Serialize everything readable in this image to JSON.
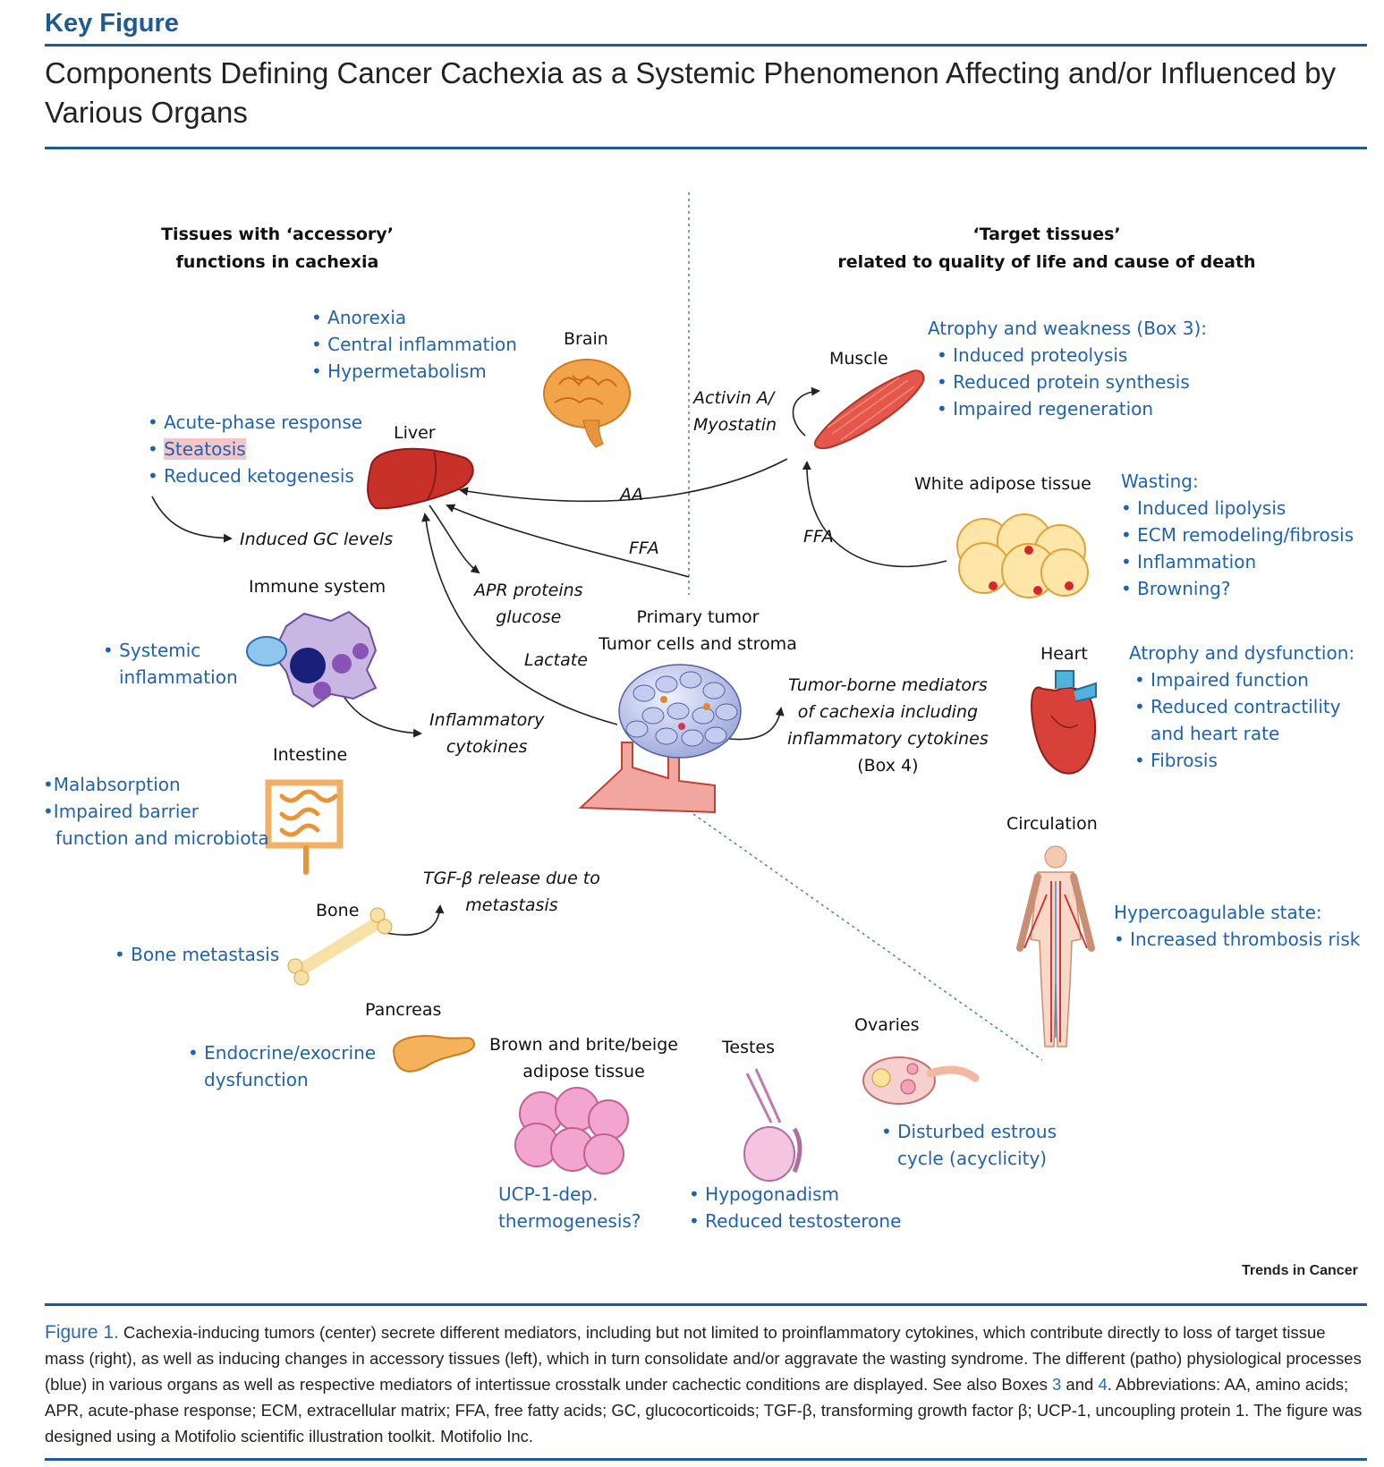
{
  "header": {
    "label": "Key Figure",
    "title": "Components Defining Cancer Cachexia as a Systemic Phenomenon Affecting and/or Influenced by Various Organs"
  },
  "columns": {
    "left_header": [
      "Tissues with ‘accessory’",
      "functions in cachexia"
    ],
    "right_header": [
      "‘Target tissues’",
      "related to quality of life and cause of death"
    ]
  },
  "organs": {
    "brain": "Brain",
    "liver": "Liver",
    "muscle": "Muscle",
    "wat": "White adipose tissue",
    "immune": "Immune system",
    "tumor": [
      "Primary tumor",
      "Tumor cells and stroma"
    ],
    "heart": "Heart",
    "intestine": "Intestine",
    "circulation": "Circulation",
    "bone": "Bone",
    "pancreas": "Pancreas",
    "bat": [
      "Brown and brite/beige",
      "adipose tissue"
    ],
    "testes": "Testes",
    "ovaries": "Ovaries"
  },
  "mediators": {
    "activin": [
      "Activin A/",
      "Myostatin"
    ],
    "aa": "AA",
    "ffa_left": "FFA",
    "ffa_right": "FFA",
    "gc": "Induced GC levels",
    "apr": [
      "APR proteins",
      "glucose"
    ],
    "lactate": "Lactate",
    "tumor_mediators": [
      "Tumor-borne mediators",
      "of cachexia including",
      "inflammatory cytokines"
    ],
    "box4": "(Box 4)",
    "cytokines": [
      "Inflammatory",
      "cytokines"
    ],
    "tgf": [
      "TGF-β release due to",
      "metastasis"
    ]
  },
  "effects": {
    "brain": [
      "Anorexia",
      "Central inflammation",
      "Hypermetabolism"
    ],
    "liver": [
      "Acute-phase response",
      "Steatosis",
      "Reduced ketogenesis"
    ],
    "muscle_title": "Atrophy and weakness (Box 3):",
    "muscle": [
      "Induced proteolysis",
      "Reduced protein synthesis",
      "Impaired regeneration"
    ],
    "wat_title": "Wasting:",
    "wat": [
      "Induced lipolysis",
      "ECM remodeling/fibrosis",
      "Inflammation",
      "Browning?"
    ],
    "immune": [
      "Systemic",
      "inflammation"
    ],
    "heart_title": "Atrophy and dysfunction:",
    "heart": [
      "Impaired function",
      "Reduced contractility",
      "and heart rate",
      "Fibrosis"
    ],
    "intestine": [
      "Malabsorption",
      "Impaired barrier",
      "function and microbiota"
    ],
    "circulation_title": "Hypercoagulable state:",
    "circulation": [
      "Increased thrombosis risk"
    ],
    "bone": [
      "Bone metastasis"
    ],
    "pancreas": [
      "Endocrine/exocrine",
      "dysfunction"
    ],
    "bat": [
      "UCP-1-dep.",
      "thermogenesis?"
    ],
    "testes": [
      "Hypogonadism",
      "Reduced testosterone"
    ],
    "ovaries": [
      "Disturbed estrous",
      "cycle (acyclicity)"
    ]
  },
  "credit": "Trends in Cancer",
  "caption": {
    "label": "Figure 1.",
    "text1": "Cachexia-inducing tumors (center) secrete different mediators, including but not limited to proinflammatory cytokines, which contribute directly to loss of target tissue mass (right), as well as inducing changes in accessory tissues (left), which in turn consolidate and/or aggravate the wasting syndrome. The different (patho) physiological processes (blue) in various organs as well as respective mediators of intertissue crosstalk under cachectic conditions are displayed. See also Boxes",
    "ref1": "3",
    "and": "and",
    "ref2": "4",
    "text2": ". Abbreviations: AA, amino acids; APR, acute-phase response; ECM, extracellular matrix; FFA, free fatty acids; GC, glucocorticoids; TGF-β, transforming growth factor β; UCP-1, uncoupling protein 1. The figure was designed using a Motifolio scientific illustration toolkit. Motifolio Inc."
  },
  "colors": {
    "accent": "#1f5b92",
    "effect_blue": "#1f62b0",
    "highlight": "#f6c6c6"
  }
}
